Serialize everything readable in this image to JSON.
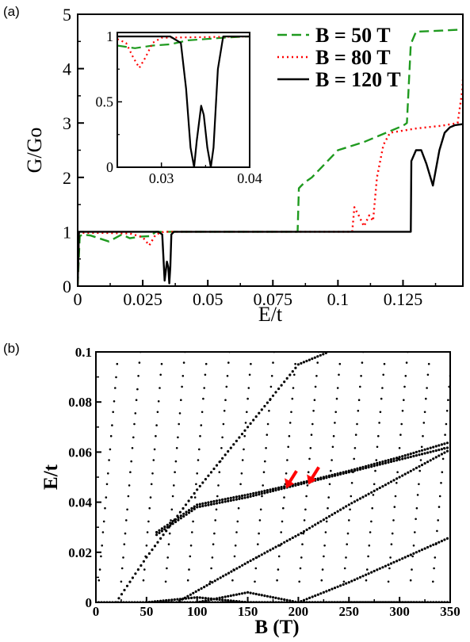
{
  "chart_data": [
    {
      "panel": "(a)",
      "type": "line",
      "xlabel": "E/t",
      "ylabel": "G/Go",
      "xlim": [
        0,
        0.148
      ],
      "ylim": [
        0,
        5
      ],
      "xticks": [
        "0",
        "0.025",
        "0.05",
        "0.075",
        "0.1",
        "0.125"
      ],
      "xtick_values": [
        0,
        0.025,
        0.05,
        0.075,
        0.1,
        0.125
      ],
      "yticks": [
        "0",
        "1",
        "2",
        "3",
        "4",
        "5"
      ],
      "ytick_values": [
        0,
        1,
        2,
        3,
        4,
        5
      ],
      "legend_position": "top-right",
      "series": [
        {
          "name": "B = 50 T",
          "color": "#1f9a1f",
          "style": "dashed",
          "x": [
            0,
            0.0008,
            0.002,
            0.005,
            0.012,
            0.017,
            0.02,
            0.024,
            0.028,
            0.03,
            0.0845,
            0.085,
            0.087,
            0.09,
            0.095,
            0.1,
            0.11,
            0.125,
            0.1265,
            0.128,
            0.13,
            0.14,
            0.1481
          ],
          "y": [
            0,
            0.92,
            0.95,
            0.93,
            0.82,
            0.95,
            0.88,
            0.91,
            0.92,
            1,
            1,
            1.8,
            1.9,
            2.0,
            2.25,
            2.5,
            2.65,
            2.95,
            3.0,
            4.45,
            4.68,
            4.7,
            4.72
          ]
        },
        {
          "name": "B = 80 T",
          "color": "#ff0000",
          "style": "dotted",
          "x": [
            0,
            0.0005,
            0.01,
            0.02,
            0.025,
            0.0275,
            0.03,
            0.033,
            0.1055,
            0.1063,
            0.108,
            0.11,
            0.112,
            0.1135,
            0.115,
            0.1175,
            0.12,
            0.13,
            0.14,
            0.146,
            0.1478,
            0.148
          ],
          "y": [
            0,
            0.98,
            0.98,
            0.97,
            0.9,
            0.75,
            0.95,
            1,
            1,
            1.45,
            1.3,
            1.1,
            1.3,
            1.2,
            2.0,
            2.6,
            2.82,
            2.9,
            2.95,
            3.0,
            3.6,
            3.8
          ]
        },
        {
          "name": "B = 120 T",
          "color": "#000000",
          "style": "solid",
          "x": [
            0,
            0.0005,
            0.031,
            0.0325,
            0.0334,
            0.0343,
            0.0348,
            0.0352,
            0.0356,
            0.036,
            0.037,
            0.128,
            0.1282,
            0.13,
            0.132,
            0.134,
            0.1365,
            0.139,
            0.141,
            0.143,
            0.145,
            0.148
          ],
          "y": [
            0,
            1,
            1,
            0.95,
            0.1,
            0.45,
            0.35,
            0.05,
            0.35,
            0.95,
            1,
            1,
            2.3,
            2.5,
            2.5,
            2.25,
            1.85,
            2.5,
            2.82,
            2.92,
            2.96,
            2.98
          ]
        }
      ],
      "inset": {
        "xlim": [
          0.025,
          0.04
        ],
        "ylim": [
          0,
          1.03
        ],
        "xticks": [
          "0.03",
          "0.04"
        ],
        "xtick_values": [
          0.03,
          0.04
        ],
        "yticks": [
          "0",
          "0.5",
          "1"
        ],
        "ytick_values": [
          0,
          0.5,
          1
        ],
        "series": [
          {
            "name": "B = 50 T",
            "color": "#1f9a1f",
            "style": "dashed",
            "x": [
              0.025,
              0.027,
              0.029,
              0.031,
              0.033,
              0.035,
              0.037,
              0.04
            ],
            "y": [
              0.93,
              0.91,
              0.93,
              0.94,
              0.97,
              0.98,
              0.99,
              1.0
            ]
          },
          {
            "name": "B = 80 T",
            "color": "#ff0000",
            "style": "dotted",
            "x": [
              0.025,
              0.026,
              0.0268,
              0.0275,
              0.0282,
              0.029,
              0.03,
              0.04
            ],
            "y": [
              0.98,
              0.95,
              0.84,
              0.76,
              0.84,
              0.95,
              0.99,
              1.0
            ]
          },
          {
            "name": "B = 120 T",
            "color": "#000000",
            "style": "solid",
            "x": [
              0.025,
              0.031,
              0.0322,
              0.0328,
              0.0333,
              0.0337,
              0.034,
              0.0345,
              0.0348,
              0.0352,
              0.0356,
              0.0359,
              0.0364,
              0.037,
              0.04
            ],
            "y": [
              1.0,
              1.0,
              0.95,
              0.6,
              0.15,
              0.0,
              0.2,
              0.47,
              0.4,
              0.15,
              0.0,
              0.15,
              0.75,
              1.0,
              1.0
            ]
          }
        ]
      }
    },
    {
      "panel": "(b)",
      "type": "scatter",
      "xlabel": "B (T)",
      "ylabel": "E/t",
      "xlim": [
        0,
        350
      ],
      "ylim": [
        0,
        0.1
      ],
      "xticks": [
        "0",
        "50",
        "100",
        "150",
        "200",
        "250",
        "300",
        "350"
      ],
      "xtick_values": [
        0,
        50,
        100,
        150,
        200,
        250,
        300,
        350
      ],
      "yticks": [
        "0",
        "0.02",
        "0.04",
        "0.06",
        "0.08",
        "0.1"
      ],
      "ytick_values": [
        0,
        0.02,
        0.04,
        0.06,
        0.08,
        0.1
      ],
      "marker_color": "#000000",
      "series": [
        {
          "name": "",
          "x": [
            60,
            100,
            150,
            200,
            250,
            300,
            350
          ],
          "y": [
            0.027,
            0.038,
            0.042,
            0.047,
            0.052,
            0.057,
            0.062
          ]
        },
        {
          "name": "",
          "x": [
            60,
            100,
            150,
            200,
            250,
            300,
            350
          ],
          "y": [
            0.028,
            0.039,
            0.043,
            0.0475,
            0.0525,
            0.058,
            0.064
          ]
        },
        {
          "name": "",
          "x": [
            20,
            50,
            100,
            150,
            200,
            230
          ],
          "y": [
            0.0,
            0.018,
            0.045,
            0.07,
            0.095,
            0.1
          ]
        },
        {
          "name": "",
          "x": [
            80,
            150,
            200,
            250,
            300,
            350
          ],
          "y": [
            0.0,
            0.016,
            0.027,
            0.039,
            0.05,
            0.061
          ]
        },
        {
          "name": "",
          "x": [
            200,
            250,
            300,
            350
          ],
          "y": [
            0.0,
            0.008,
            0.017,
            0.026
          ]
        },
        {
          "name": "",
          "x": [
            50,
            100,
            150,
            200,
            250,
            300,
            350
          ],
          "y": [
            0.0,
            0.002,
            0.0,
            0.0,
            0.0,
            0.0,
            0.0
          ]
        },
        {
          "name": "",
          "x": [
            100,
            150,
            200,
            250,
            300,
            350
          ],
          "y": [
            0.0,
            0.004,
            0.0,
            0.0,
            0.0,
            0.0
          ]
        },
        {
          "name": "",
          "x": [
            0,
            200,
            350
          ],
          "y": [
            0.0,
            0.0,
            0.0
          ]
        }
      ],
      "annotations": [
        {
          "type": "arrow",
          "color": "#ff0000",
          "target_x": 188,
          "target_y": 0.0455
        },
        {
          "type": "arrow",
          "color": "#ff0000",
          "target_x": 210,
          "target_y": 0.047
        }
      ]
    }
  ]
}
